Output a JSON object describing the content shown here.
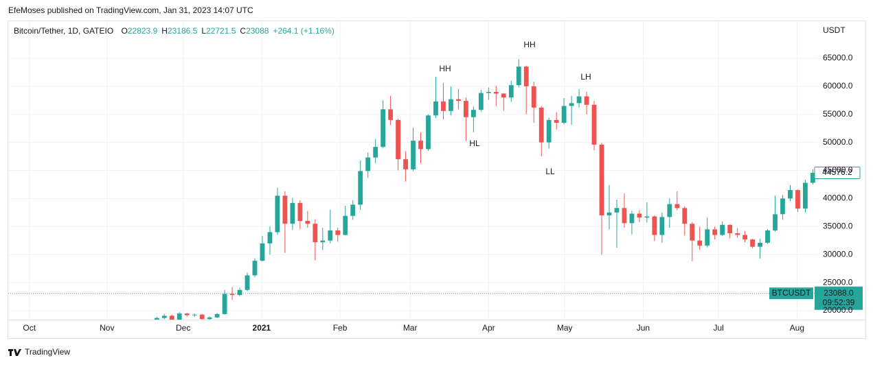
{
  "published": "EfeMoses published on TradingView.com, Jan 31, 2023 14:07 UTC",
  "footer": "TradingView",
  "chart_data": {
    "type": "candlestick",
    "title": "Bitcoin/Tether, 1D, GATEIO",
    "header": [
      {
        "key": "O",
        "value": 22823.9
      },
      {
        "key": "H",
        "value": 23186.5
      },
      {
        "key": "L",
        "value": 22721.5
      },
      {
        "key": "C",
        "value": 23088.0
      }
    ],
    "change": "+264.1 (+1.16%)",
    "y_unit": "USDT",
    "up_color": "#26a69a",
    "down_color": "#ef5350",
    "open": [
      18400,
      18700,
      19100,
      17800,
      19500,
      19200,
      19300,
      18500,
      18800,
      19400,
      23000,
      22800,
      23700,
      26300,
      28900,
      32000,
      34000,
      40500,
      35500,
      39200,
      36000,
      35500,
      32200,
      32500,
      34300,
      33500,
      36900,
      38900,
      44900,
      47300,
      49200,
      55900,
      54000,
      47000,
      45200,
      50300,
      48800,
      54800,
      57300,
      55600,
      57700,
      57400,
      54500,
      55800,
      58800,
      59000,
      58700,
      58000,
      60200,
      63500,
      60000,
      56200,
      50000,
      54000,
      53500,
      56500,
      57000,
      58200,
      56700,
      49600,
      37000,
      37500,
      38300,
      35600,
      37300,
      36600,
      36800,
      33500,
      36700,
      39000,
      38300,
      35500,
      32500,
      31600,
      34500,
      33500,
      35300,
      33800,
      33500,
      32700,
      31400,
      32100,
      34300,
      37200,
      40000,
      41500,
      38200,
      42800
    ],
    "high": [
      18900,
      19400,
      19300,
      19800,
      19600,
      19500,
      19400,
      19000,
      19600,
      23700,
      24200,
      24100,
      26800,
      29300,
      33300,
      35000,
      41900,
      41300,
      40100,
      39700,
      37800,
      36300,
      34800,
      38000,
      34800,
      38700,
      39700,
      46800,
      48200,
      50600,
      57500,
      58300,
      54200,
      48400,
      52600,
      51800,
      55000,
      61700,
      60600,
      60000,
      59500,
      58000,
      56400,
      59400,
      59800,
      60100,
      58800,
      61000,
      64800,
      63700,
      60800,
      56500,
      54400,
      55400,
      57900,
      58300,
      59500,
      59000,
      57400,
      49900,
      42400,
      39800,
      40900,
      37800,
      37900,
      39300,
      37000,
      37500,
      40000,
      41300,
      38600,
      35800,
      35000,
      36600,
      35000,
      35900,
      35400,
      34700,
      34200,
      32800,
      32800,
      34500,
      40500,
      40600,
      42400,
      41600,
      43300,
      45200
    ],
    "low": [
      18100,
      18500,
      16900,
      17600,
      18900,
      18900,
      17900,
      18300,
      18700,
      19300,
      21900,
      22600,
      23500,
      26000,
      28800,
      30000,
      33500,
      30300,
      34400,
      34500,
      34800,
      29000,
      30800,
      32000,
      32300,
      33400,
      36200,
      38000,
      43700,
      46300,
      49000,
      53100,
      45000,
      43000,
      44900,
      46300,
      48500,
      54300,
      54100,
      54800,
      55900,
      50300,
      51800,
      55500,
      57600,
      56500,
      55600,
      57200,
      59800,
      55000,
      53500,
      47500,
      48900,
      52300,
      53200,
      53100,
      56200,
      55000,
      48600,
      30000,
      34500,
      31200,
      34800,
      33600,
      35800,
      35700,
      32400,
      32100,
      34800,
      37900,
      33400,
      28800,
      30800,
      31300,
      32700,
      33300,
      32900,
      33000,
      32200,
      31100,
      29300,
      31900,
      34100,
      36200,
      39500,
      37600,
      37500,
      42500
    ],
    "close": [
      18700,
      19100,
      17800,
      19500,
      19200,
      19300,
      18500,
      18800,
      19400,
      23000,
      22800,
      23700,
      26300,
      28900,
      32000,
      34000,
      40500,
      35500,
      39200,
      36000,
      35500,
      32200,
      32500,
      34300,
      33500,
      36900,
      38900,
      44900,
      47300,
      49200,
      55900,
      54000,
      47000,
      45200,
      50300,
      48800,
      54800,
      57300,
      55600,
      57700,
      57400,
      54500,
      55800,
      58800,
      59000,
      58700,
      58000,
      60200,
      63500,
      60000,
      56200,
      50000,
      54000,
      53500,
      56500,
      57000,
      58200,
      56700,
      49600,
      37000,
      37500,
      38300,
      35600,
      37300,
      36600,
      36800,
      33500,
      36700,
      39000,
      38300,
      35500,
      32500,
      31600,
      34500,
      33500,
      35300,
      33800,
      33500,
      32700,
      31400,
      32100,
      34300,
      37200,
      40000,
      41500,
      38200,
      42800,
      44576.2
    ],
    "xlim": [
      -19.7,
      87.6
    ],
    "xticks": [
      {
        "value": -16.9,
        "label": "Oct"
      },
      {
        "value": -6.6,
        "label": "Nov"
      },
      {
        "value": 3.5,
        "label": "Dec"
      },
      {
        "value": 13.9,
        "label": "2021"
      },
      {
        "value": 24.3,
        "label": "Feb"
      },
      {
        "value": 33.6,
        "label": "Mar"
      },
      {
        "value": 44,
        "label": "Apr"
      },
      {
        "value": 54.1,
        "label": "May"
      },
      {
        "value": 64.5,
        "label": "Jun"
      },
      {
        "value": 74.5,
        "label": "Jul"
      },
      {
        "value": 84.9,
        "label": "Aug"
      }
    ],
    "ylim": [
      18410,
      71590
    ],
    "yticks": [
      {
        "value": 20000,
        "label": "20000.0"
      },
      {
        "value": 25000,
        "label": "25000.0"
      },
      {
        "value": 30000,
        "label": "30000.0"
      },
      {
        "value": 35000,
        "label": "35000.0"
      },
      {
        "value": 40000,
        "label": "40000.0"
      },
      {
        "value": 45000,
        "label": "45000.0"
      },
      {
        "value": 50000,
        "label": "50000.0"
      },
      {
        "value": 55000,
        "label": "55000.0"
      },
      {
        "value": 60000,
        "label": "60000.0"
      },
      {
        "value": 65000,
        "label": "65000.0"
      }
    ],
    "grid": true,
    "annotations": [
      "HH",
      "HL",
      "HH",
      "LL",
      "LH"
    ],
    "symbol": "BTCUSDT",
    "last_price": {
      "value": 23088.0,
      "label": "23088.0"
    },
    "countdown": "09:52:39"
  }
}
